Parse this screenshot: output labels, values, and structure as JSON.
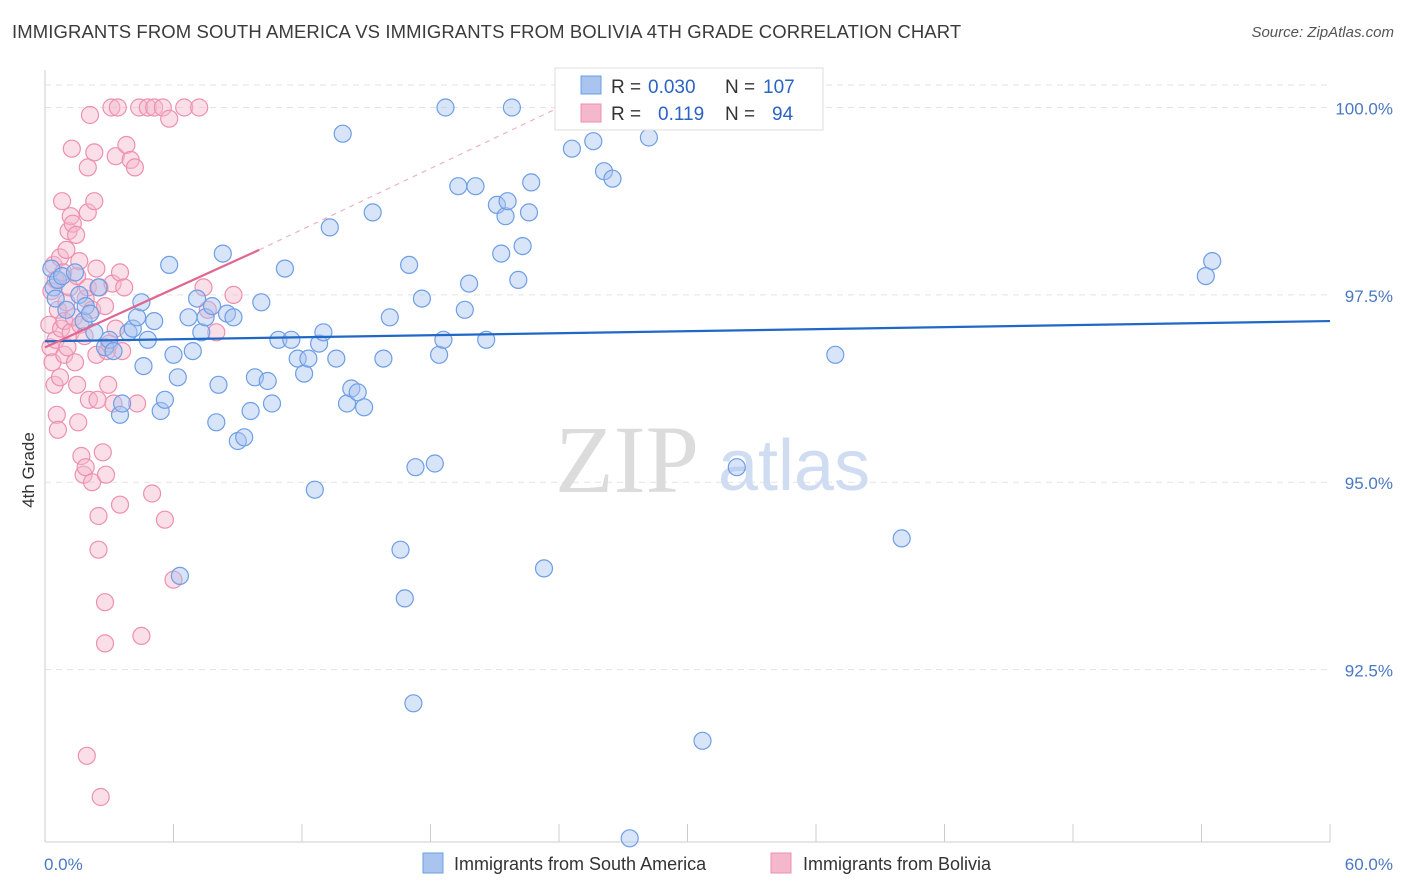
{
  "title": "IMMIGRANTS FROM SOUTH AMERICA VS IMMIGRANTS FROM BOLIVIA 4TH GRADE CORRELATION CHART",
  "source": "Source: ZipAtlas.com",
  "watermark": {
    "zip": "ZIP",
    "atlas": "atlas"
  },
  "colors": {
    "blue_fill": "#a9c4ef",
    "blue_stroke": "#6d9ee6",
    "blue_line": "#2068c8",
    "pink_fill": "#f5b7cb",
    "pink_stroke": "#ee8fb0",
    "pink_line": "#e06690",
    "tick_label": "#4a78c2",
    "grid": "#e3e3e3"
  },
  "legend": {
    "rows": [
      {
        "r_label": "R =",
        "r_value": "0.030",
        "n_label": "N =",
        "n_value": "107"
      },
      {
        "r_label": "R =",
        "r_value": "0.119",
        "n_label": "N =",
        "n_value": "94"
      }
    ]
  },
  "chart_data": {
    "type": "scatter",
    "title": "IMMIGRANTS FROM SOUTH AMERICA VS IMMIGRANTS FROM BOLIVIA 4TH GRADE CORRELATION CHART",
    "xlabel": "",
    "ylabel": "4th Grade",
    "xlim": [
      0,
      60
    ],
    "ylim": [
      90.2,
      100.5
    ],
    "x_tick_labels": [
      "0.0%",
      "60.0%"
    ],
    "y_ticks": [
      92.5,
      95.0,
      97.5,
      100.0
    ],
    "y_tick_labels": [
      "92.5%",
      "95.0%",
      "97.5%",
      "100.0%"
    ],
    "grid": true,
    "legend_position": "top-center",
    "series": [
      {
        "name": "Immigrants from South America",
        "color": "#a9c4ef",
        "R": 0.03,
        "N": 107,
        "trend": {
          "x": [
            0,
            60
          ],
          "y": [
            96.88,
            97.15
          ],
          "dashed_extension": false
        },
        "points": [
          [
            0.3,
            97.85
          ],
          [
            0.4,
            97.6
          ],
          [
            0.5,
            97.45
          ],
          [
            0.6,
            97.7
          ],
          [
            0.8,
            97.75
          ],
          [
            1.0,
            97.3
          ],
          [
            1.4,
            97.8
          ],
          [
            1.6,
            97.5
          ],
          [
            1.8,
            97.15
          ],
          [
            1.9,
            97.35
          ],
          [
            2.1,
            97.25
          ],
          [
            2.3,
            97.0
          ],
          [
            2.5,
            97.6
          ],
          [
            2.8,
            96.8
          ],
          [
            3.0,
            96.9
          ],
          [
            3.2,
            96.75
          ],
          [
            3.5,
            95.9
          ],
          [
            3.6,
            96.05
          ],
          [
            3.9,
            97.0
          ],
          [
            4.1,
            97.05
          ],
          [
            4.3,
            97.2
          ],
          [
            4.5,
            97.4
          ],
          [
            4.6,
            96.55
          ],
          [
            4.8,
            96.9
          ],
          [
            5.1,
            97.15
          ],
          [
            5.4,
            95.95
          ],
          [
            5.6,
            96.1
          ],
          [
            5.8,
            97.9
          ],
          [
            6.0,
            96.7
          ],
          [
            6.2,
            96.4
          ],
          [
            6.3,
            93.75
          ],
          [
            6.7,
            97.2
          ],
          [
            6.9,
            96.75
          ],
          [
            7.1,
            97.45
          ],
          [
            7.3,
            97.0
          ],
          [
            7.5,
            97.2
          ],
          [
            7.8,
            97.35
          ],
          [
            8.0,
            95.8
          ],
          [
            8.1,
            96.3
          ],
          [
            8.3,
            98.05
          ],
          [
            8.5,
            97.25
          ],
          [
            8.8,
            97.2
          ],
          [
            9.0,
            95.55
          ],
          [
            9.3,
            95.6
          ],
          [
            9.6,
            95.95
          ],
          [
            9.8,
            96.4
          ],
          [
            10.1,
            97.4
          ],
          [
            10.4,
            96.35
          ],
          [
            10.6,
            96.05
          ],
          [
            10.9,
            96.9
          ],
          [
            11.2,
            97.85
          ],
          [
            11.5,
            96.9
          ],
          [
            11.8,
            96.65
          ],
          [
            12.1,
            96.45
          ],
          [
            12.3,
            96.65
          ],
          [
            12.6,
            94.9
          ],
          [
            12.8,
            96.85
          ],
          [
            13.0,
            97.0
          ],
          [
            13.3,
            98.4
          ],
          [
            13.6,
            96.65
          ],
          [
            13.9,
            99.65
          ],
          [
            14.1,
            96.05
          ],
          [
            14.3,
            96.25
          ],
          [
            14.6,
            96.2
          ],
          [
            14.9,
            96.0
          ],
          [
            15.3,
            98.6
          ],
          [
            15.8,
            96.65
          ],
          [
            16.1,
            97.2
          ],
          [
            16.6,
            94.1
          ],
          [
            16.8,
            93.45
          ],
          [
            17.0,
            97.9
          ],
          [
            17.2,
            92.05
          ],
          [
            17.3,
            95.2
          ],
          [
            17.6,
            97.45
          ],
          [
            18.2,
            95.25
          ],
          [
            18.4,
            96.7
          ],
          [
            18.6,
            96.9
          ],
          [
            18.7,
            100.0
          ],
          [
            19.3,
            98.95
          ],
          [
            19.6,
            97.3
          ],
          [
            19.8,
            97.65
          ],
          [
            20.1,
            98.95
          ],
          [
            20.6,
            96.9
          ],
          [
            21.1,
            98.7
          ],
          [
            21.3,
            98.05
          ],
          [
            21.5,
            98.55
          ],
          [
            21.6,
            98.75
          ],
          [
            21.8,
            100.0
          ],
          [
            22.1,
            97.7
          ],
          [
            22.3,
            98.15
          ],
          [
            22.6,
            98.6
          ],
          [
            22.7,
            99.0
          ],
          [
            23.3,
            93.85
          ],
          [
            24.6,
            99.45
          ],
          [
            25.3,
            100.0
          ],
          [
            25.6,
            99.55
          ],
          [
            26.1,
            99.15
          ],
          [
            26.5,
            99.05
          ],
          [
            27.3,
            90.25
          ],
          [
            28.0,
            100.0
          ],
          [
            28.2,
            99.6
          ],
          [
            30.7,
            91.55
          ],
          [
            32.3,
            95.2
          ],
          [
            36.9,
            96.7
          ],
          [
            40.0,
            94.25
          ],
          [
            54.2,
            97.75
          ],
          [
            54.5,
            97.95
          ]
        ]
      },
      {
        "name": "Immigrants from Bolivia",
        "color": "#f5b7cb",
        "R": 0.119,
        "N": 94,
        "trend": {
          "x": [
            0,
            10
          ],
          "y": [
            96.8,
            98.1
          ],
          "dashed_extension": true,
          "dashed_to": [
            24.0,
            100.0
          ]
        },
        "points": [
          [
            0.2,
            97.1
          ],
          [
            0.25,
            96.8
          ],
          [
            0.3,
            97.55
          ],
          [
            0.35,
            96.6
          ],
          [
            0.4,
            97.9
          ],
          [
            0.45,
            96.3
          ],
          [
            0.5,
            97.7
          ],
          [
            0.5,
            96.9
          ],
          [
            0.55,
            95.9
          ],
          [
            0.6,
            95.7
          ],
          [
            0.6,
            97.3
          ],
          [
            0.7,
            98.0
          ],
          [
            0.7,
            96.4
          ],
          [
            0.75,
            97.05
          ],
          [
            0.8,
            98.75
          ],
          [
            0.85,
            97.8
          ],
          [
            0.9,
            96.7
          ],
          [
            0.9,
            97.15
          ],
          [
            1.0,
            98.1
          ],
          [
            1.0,
            97.4
          ],
          [
            1.05,
            96.8
          ],
          [
            1.1,
            98.35
          ],
          [
            1.15,
            97.6
          ],
          [
            1.2,
            98.55
          ],
          [
            1.2,
            97.0
          ],
          [
            1.25,
            99.45
          ],
          [
            1.3,
            98.45
          ],
          [
            1.35,
            97.2
          ],
          [
            1.4,
            96.6
          ],
          [
            1.45,
            98.3
          ],
          [
            1.5,
            97.75
          ],
          [
            1.5,
            96.3
          ],
          [
            1.55,
            95.8
          ],
          [
            1.6,
            97.95
          ],
          [
            1.65,
            97.1
          ],
          [
            1.7,
            95.35
          ],
          [
            1.8,
            95.1
          ],
          [
            1.85,
            96.95
          ],
          [
            1.9,
            97.45
          ],
          [
            1.9,
            95.2
          ],
          [
            1.95,
            91.35
          ],
          [
            2.0,
            98.6
          ],
          [
            2.0,
            97.6
          ],
          [
            2.0,
            99.2
          ],
          [
            2.05,
            96.1
          ],
          [
            2.1,
            99.9
          ],
          [
            2.2,
            97.3
          ],
          [
            2.2,
            95.0
          ],
          [
            2.3,
            98.75
          ],
          [
            2.3,
            99.4
          ],
          [
            2.4,
            97.85
          ],
          [
            2.4,
            96.7
          ],
          [
            2.45,
            96.1
          ],
          [
            2.5,
            94.55
          ],
          [
            2.5,
            94.1
          ],
          [
            2.55,
            97.6
          ],
          [
            2.6,
            90.8
          ],
          [
            2.7,
            95.4
          ],
          [
            2.8,
            97.35
          ],
          [
            2.8,
            93.4
          ],
          [
            2.8,
            92.85
          ],
          [
            2.85,
            95.1
          ],
          [
            2.9,
            96.75
          ],
          [
            2.95,
            96.3
          ],
          [
            3.0,
            96.85
          ],
          [
            3.1,
            100.0
          ],
          [
            3.15,
            97.65
          ],
          [
            3.2,
            96.05
          ],
          [
            3.3,
            97.05
          ],
          [
            3.3,
            99.35
          ],
          [
            3.4,
            100.0
          ],
          [
            3.5,
            97.8
          ],
          [
            3.5,
            94.7
          ],
          [
            3.6,
            96.75
          ],
          [
            3.7,
            97.6
          ],
          [
            3.8,
            99.5
          ],
          [
            4.0,
            99.3
          ],
          [
            4.2,
            99.2
          ],
          [
            4.3,
            96.05
          ],
          [
            4.4,
            100.0
          ],
          [
            4.5,
            92.95
          ],
          [
            4.8,
            100.0
          ],
          [
            5.0,
            94.85
          ],
          [
            5.1,
            100.0
          ],
          [
            5.5,
            100.0
          ],
          [
            5.6,
            94.5
          ],
          [
            5.8,
            99.85
          ],
          [
            6.0,
            93.7
          ],
          [
            6.5,
            100.0
          ],
          [
            7.2,
            100.0
          ],
          [
            7.4,
            97.6
          ],
          [
            7.6,
            97.3
          ],
          [
            8.0,
            97.0
          ],
          [
            8.8,
            97.5
          ]
        ]
      }
    ]
  },
  "bottom_legend": [
    {
      "label": "Immigrants from South America"
    },
    {
      "label": "Immigrants from Bolivia"
    }
  ]
}
